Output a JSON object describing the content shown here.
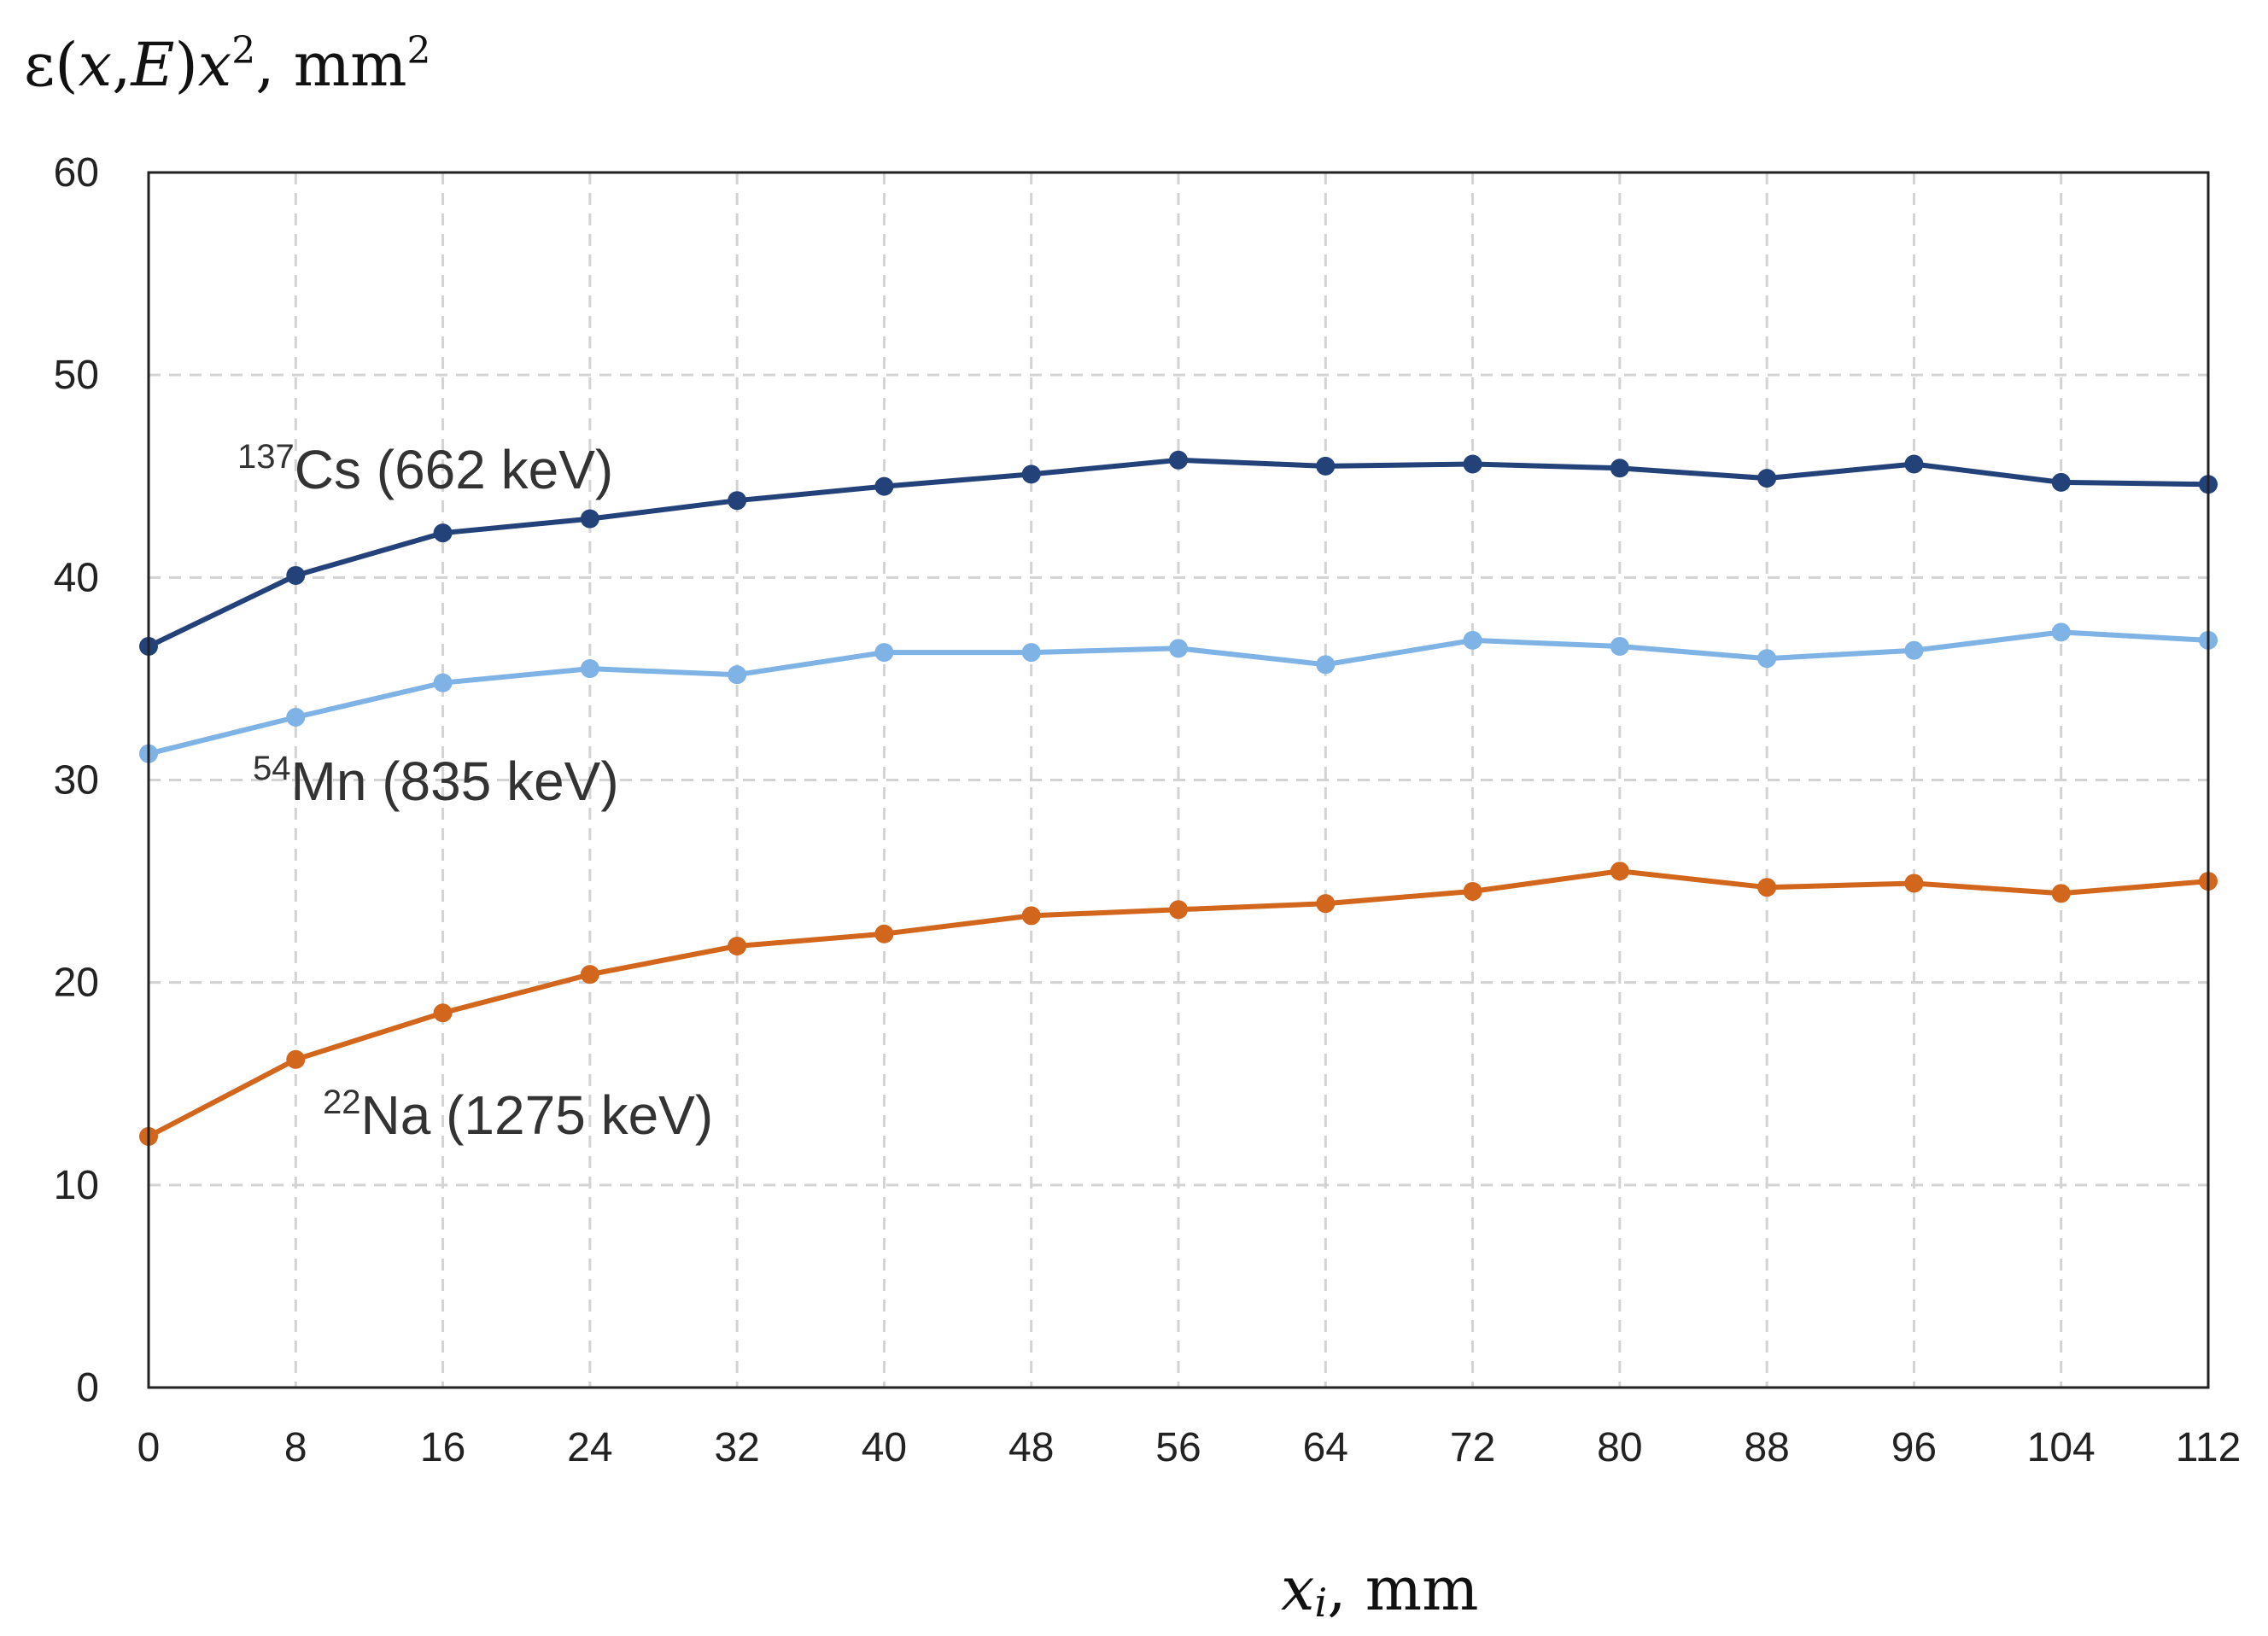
{
  "chart_data": {
    "type": "line",
    "title": "",
    "ylabel": {
      "prefix": "ε(",
      "x": "x",
      "comma": ",",
      "E": "E",
      "close": ")",
      "x2": "x",
      "sup": "2",
      "suffix": ", mm",
      "sup2": "2"
    },
    "xlabel": {
      "var": "x",
      "sub": "i",
      "suffix": ", mm"
    },
    "x": [
      0,
      8,
      16,
      24,
      32,
      40,
      48,
      56,
      64,
      72,
      80,
      88,
      96,
      104,
      112
    ],
    "xlim": [
      0,
      112
    ],
    "ylim": [
      0,
      60
    ],
    "yticks": [
      0,
      10,
      20,
      30,
      40,
      50,
      60
    ],
    "grid": true,
    "series": [
      {
        "name": "Cs-137",
        "isotope_mass": "137",
        "label": "Cs (662 keV)",
        "color": "#24427a",
        "values": [
          36.6,
          40.1,
          42.2,
          42.9,
          43.8,
          44.5,
          45.1,
          45.8,
          45.5,
          45.6,
          45.4,
          44.9,
          45.6,
          44.7,
          44.6
        ]
      },
      {
        "name": "Mn-54",
        "isotope_mass": "54",
        "label": "Mn (835 keV)",
        "color": "#7fb2e5",
        "values": [
          31.3,
          33.1,
          34.8,
          35.5,
          35.2,
          36.3,
          36.3,
          36.5,
          35.7,
          36.9,
          36.6,
          36.0,
          36.4,
          37.3,
          36.9
        ]
      },
      {
        "name": "Na-22",
        "isotope_mass": "22",
        "label": "Na (1275 keV)",
        "color": "#d2661c",
        "values": [
          12.4,
          16.2,
          18.5,
          20.4,
          21.8,
          22.4,
          23.3,
          23.6,
          23.9,
          24.5,
          25.5,
          24.7,
          24.9,
          24.4,
          25.0
        ]
      }
    ]
  }
}
